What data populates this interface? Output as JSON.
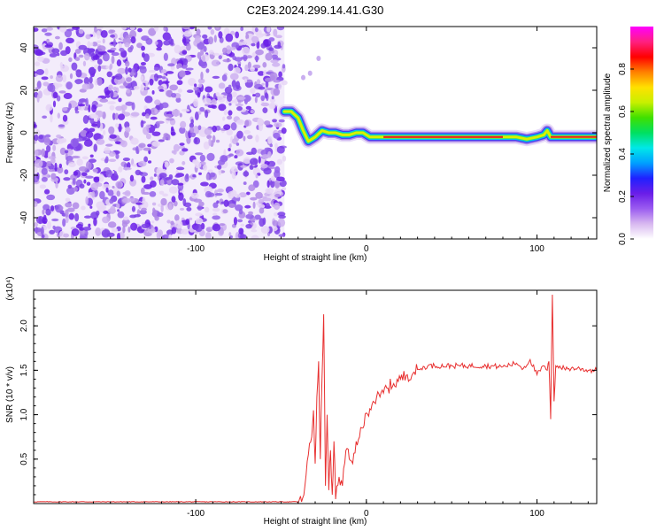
{
  "title": "C2E3.2024.299.14.41.G30",
  "chart_data": [
    {
      "type": "heatmap",
      "xlabel": "Height of straight line (km)",
      "ylabel": "Frequency (Hz)",
      "xlim": [
        -195,
        135
      ],
      "ylim": [
        -50,
        50
      ],
      "xticks": [
        -100,
        0,
        100
      ],
      "yticks": [
        -40,
        -20,
        0,
        20,
        40
      ],
      "colorbar": {
        "label": "Normalized spectral amplitude",
        "range": [
          0,
          1
        ],
        "ticks": [
          "0.0",
          "0.2",
          "0.4",
          "0.6",
          "0.8"
        ],
        "colors": [
          "#ffffff",
          "#d8b8f0",
          "#9b5cf0",
          "#6a1ee8",
          "#2020ff",
          "#00a0ff",
          "#00e8e8",
          "#00e060",
          "#40e000",
          "#c8f000",
          "#ffe000",
          "#ff8000",
          "#ff0000",
          "#ff2080",
          "#ff00ff"
        ]
      },
      "noise_region_x": [
        -195,
        -48
      ],
      "ridge": {
        "x": [
          -48,
          -44,
          -40,
          -37,
          -34,
          -30,
          -26,
          -22,
          -18,
          -14,
          -10,
          -6,
          -2,
          2,
          10,
          20,
          30,
          40,
          50,
          60,
          70,
          80,
          88,
          94,
          100,
          104,
          106,
          108,
          112,
          120,
          135
        ],
        "freq": [
          10,
          10,
          7,
          1,
          -4,
          -2,
          1,
          0,
          0,
          -1,
          -1,
          0,
          0,
          -2,
          -2,
          -2,
          -2,
          -2,
          -2,
          -2,
          -2,
          -2,
          -2,
          -3,
          -2,
          -1,
          1,
          -2,
          -2,
          -2,
          -2
        ]
      }
    },
    {
      "type": "line",
      "xlabel": "Height of straight line (km)",
      "ylabel": "SNR (10 * v/v)",
      "multiplier": "(x10⁴)",
      "xlim": [
        -195,
        135
      ],
      "ylim": [
        0,
        2.4
      ],
      "xticks": [
        -100,
        0,
        100
      ],
      "yticks": [
        "0.5",
        "1.0",
        "1.5",
        "2.0"
      ],
      "series": [
        {
          "color": "#e83030",
          "x": [
            -195,
            -160,
            -120,
            -80,
            -50,
            -38,
            -36,
            -34,
            -32,
            -31,
            -30,
            -29,
            -28,
            -27,
            -26,
            -25,
            -24,
            -23,
            -22,
            -21,
            -20,
            -19,
            -18,
            -16,
            -14,
            -12,
            -10,
            -8,
            -6,
            -4,
            -2,
            0,
            4,
            8,
            12,
            16,
            20,
            24,
            28,
            32,
            36,
            40,
            50,
            60,
            70,
            80,
            84,
            88,
            92,
            96,
            100,
            104,
            106,
            107,
            108,
            109,
            110,
            111,
            112,
            116,
            120,
            125,
            130,
            135
          ],
          "y": [
            0.02,
            0.02,
            0.02,
            0.02,
            0.02,
            0.02,
            0.2,
            0.55,
            0.75,
            1.05,
            0.45,
            1.2,
            1.6,
            0.5,
            1.4,
            2.13,
            0.2,
            1.0,
            0.15,
            0.6,
            0.1,
            0.7,
            0.05,
            0.3,
            0.2,
            0.6,
            0.5,
            0.45,
            0.7,
            0.75,
            0.85,
            1.02,
            1.15,
            1.2,
            1.3,
            1.35,
            1.4,
            1.45,
            1.48,
            1.52,
            1.55,
            1.55,
            1.55,
            1.55,
            1.55,
            1.54,
            1.56,
            1.58,
            1.52,
            1.62,
            1.45,
            1.55,
            1.5,
            1.6,
            0.95,
            2.35,
            1.15,
            1.55,
            1.55,
            1.52,
            1.52,
            1.52,
            1.5,
            1.5
          ]
        }
      ]
    }
  ]
}
